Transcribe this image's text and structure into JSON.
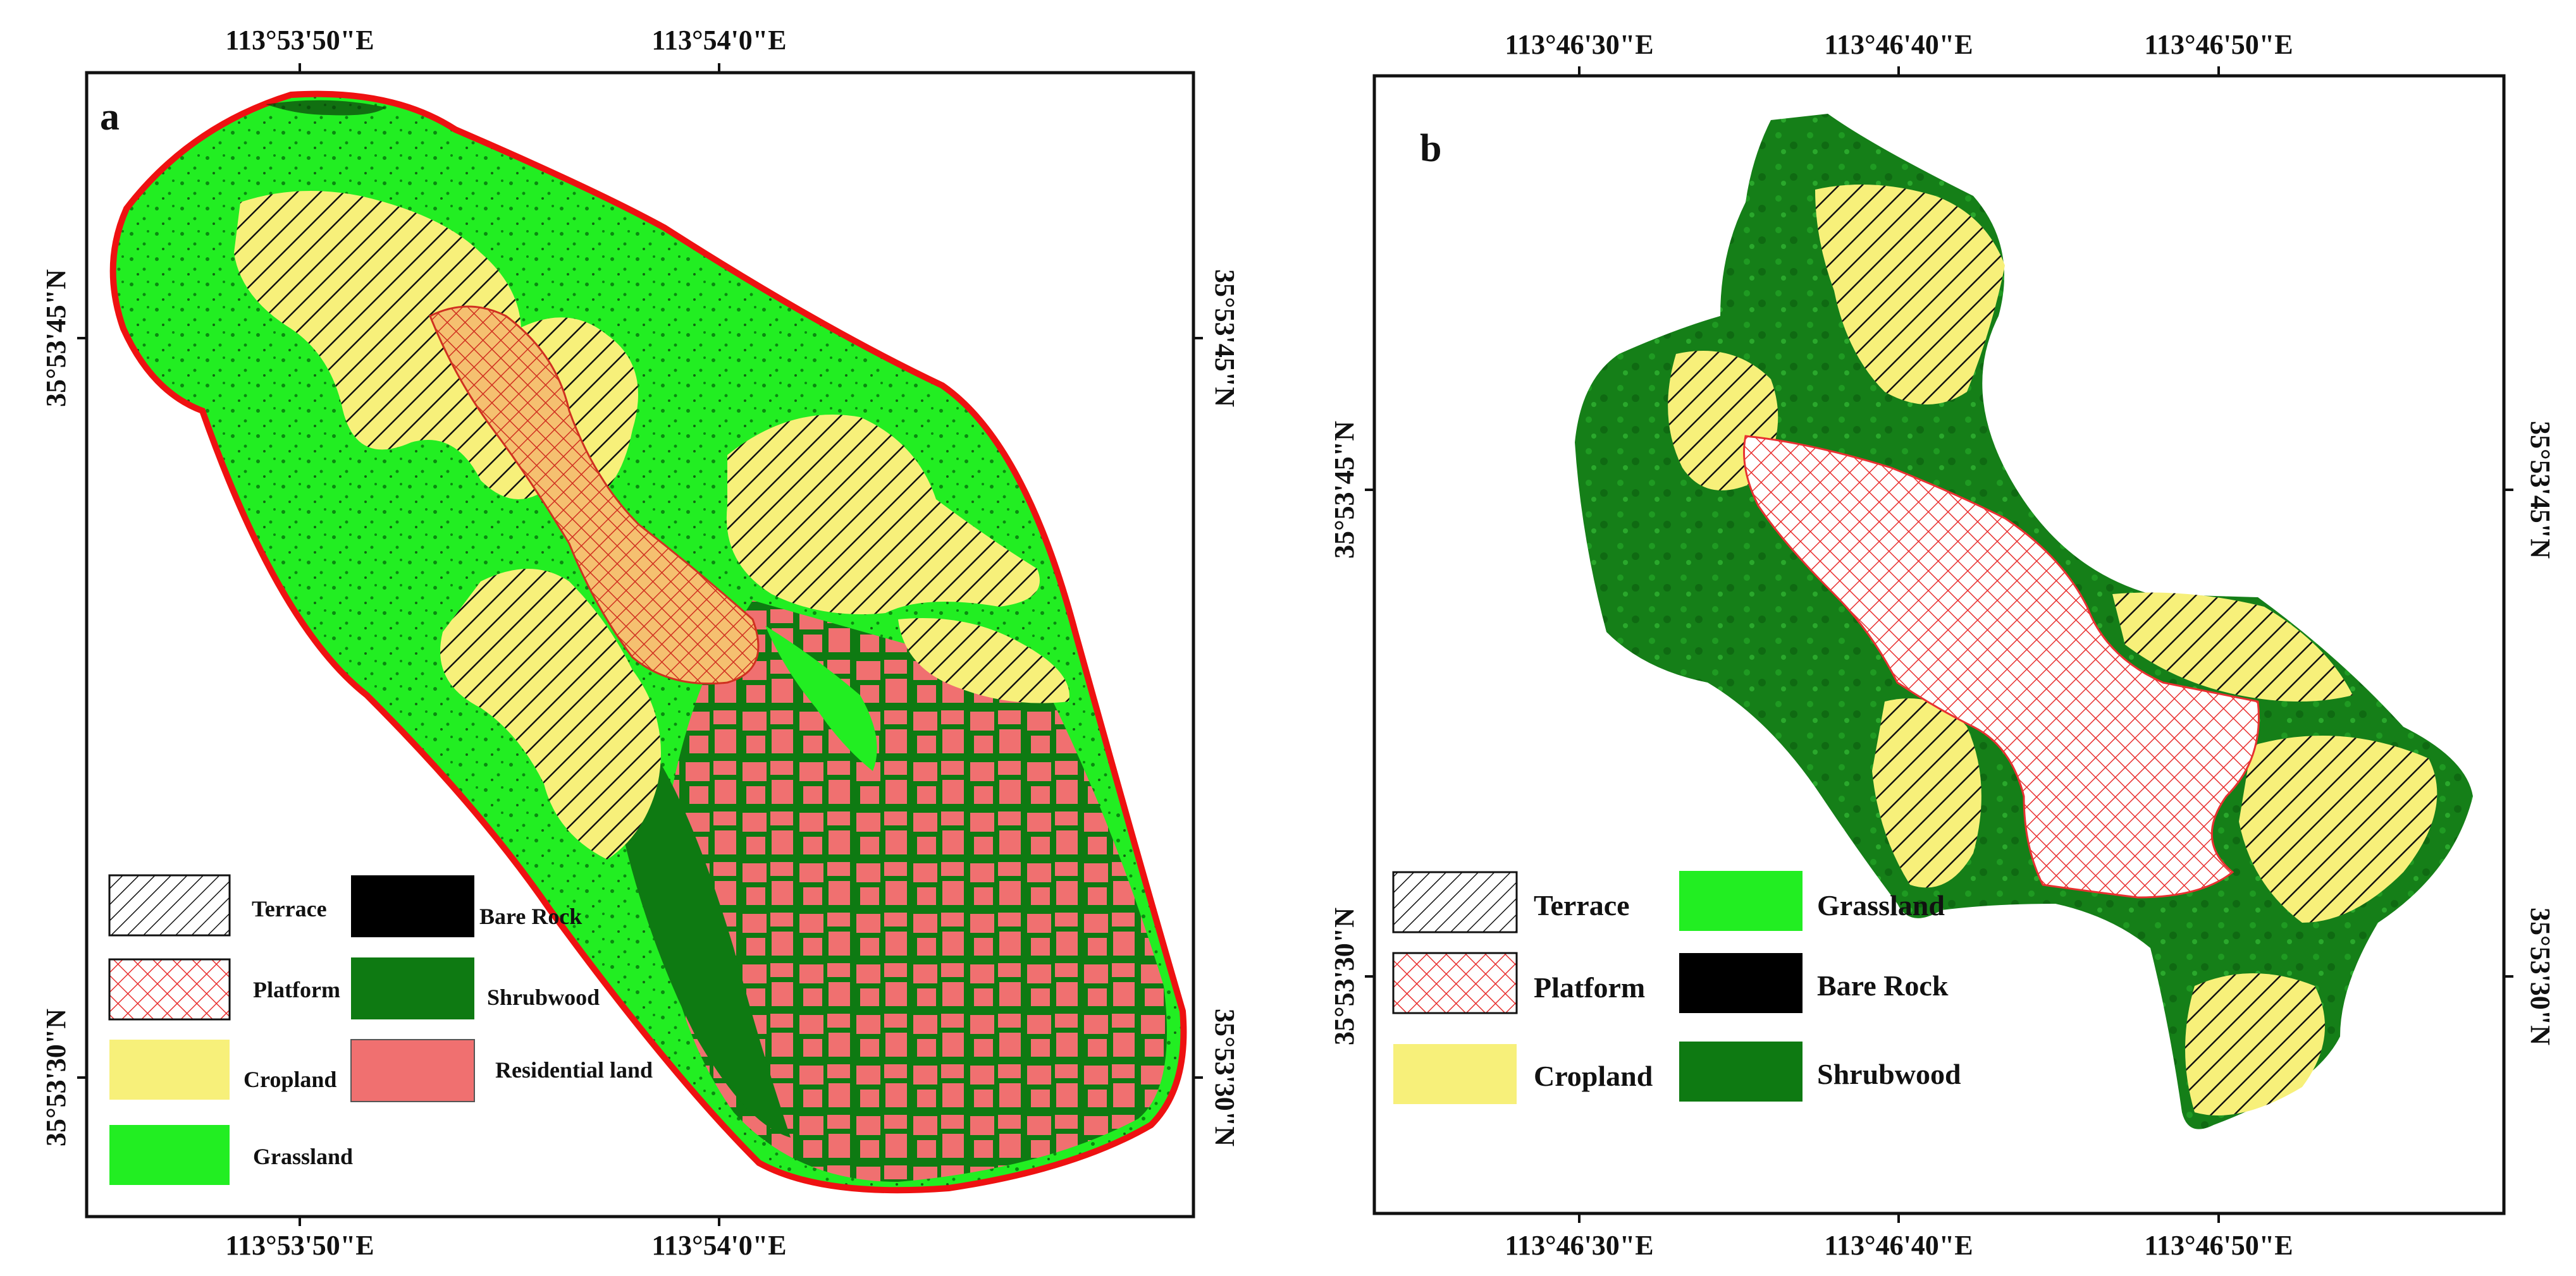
{
  "panel_a": {
    "letter": "a",
    "top_ticks": [
      "113°53'50\"E",
      "113°54'0\"E"
    ],
    "bottom_ticks": [
      "113°53'50\"E",
      "113°54'0\"E"
    ],
    "left_ticks": [
      "35°53'45\"N",
      "35°53'30\"N"
    ],
    "right_ticks": [
      "35°53'45\"N",
      "35°53'30\"N"
    ],
    "legend": {
      "terrace": "Terrace",
      "platform": "Platform",
      "cropland": "Cropland",
      "grassland": "Grassland",
      "bare_rock": "Bare Rock",
      "shrubwood": "Shrubwood",
      "residential": "Residential land"
    }
  },
  "panel_b": {
    "letter": "b",
    "top_ticks": [
      "113°46'30\"E",
      "113°46'40\"E",
      "113°46'50\"E"
    ],
    "bottom_ticks": [
      "113°46'30\"E",
      "113°46'40\"E",
      "113°46'50\"E"
    ],
    "left_ticks": [
      "35°53'45\"N",
      "35°53'30\"N"
    ],
    "right_ticks": [
      "35°53'45\"N",
      "35°53'30\"N"
    ],
    "legend": {
      "terrace": "Terrace",
      "platform": "Platform",
      "cropland": "Cropland",
      "grassland": "Grassland",
      "bare_rock": "Bare Rock",
      "shrubwood": "Shrubwood"
    }
  },
  "colors": {
    "grassland": "#22ee22",
    "shrubwood": "#0e7a12",
    "cropland": "#f7f07a",
    "platform_hatch": "#e83030",
    "residential": "#f07070",
    "bare_rock": "#000000",
    "boundary": "#ee1111",
    "platform_fill_a": "#f5c070"
  }
}
